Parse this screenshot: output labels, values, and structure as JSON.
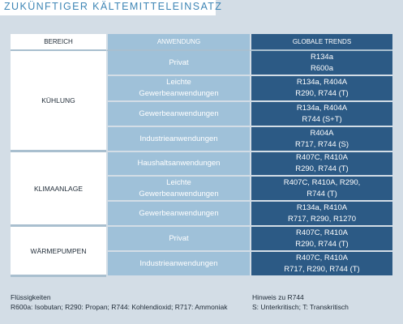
{
  "title": "ZUKÜNFTIGER KÄLTEMITTELEINSATZ",
  "headers": {
    "bereich": "BEREICH",
    "anwendung": "ANWENDUNG",
    "trends": "GLOBALE TRENDS"
  },
  "sections": [
    {
      "bereich": "KÜHLUNG",
      "rows": [
        {
          "anwendung": [
            "Privat"
          ],
          "trends": [
            "R134a",
            "R600a"
          ]
        },
        {
          "anwendung": [
            "Leichte",
            "Gewerbeanwendungen"
          ],
          "trends": [
            "R134a, R404A",
            "R290, R744 (T)"
          ]
        },
        {
          "anwendung": [
            "Gewerbeanwendungen"
          ],
          "trends": [
            "R134a, R404A",
            "R744 (S+T)"
          ]
        },
        {
          "anwendung": [
            "Industrieanwendungen"
          ],
          "trends": [
            "R404A",
            "R717, R744 (S)"
          ]
        }
      ]
    },
    {
      "bereich": "KLIMAANLAGE",
      "rows": [
        {
          "anwendung": [
            "Haushaltsanwendungen"
          ],
          "trends": [
            "R407C, R410A",
            "R290, R744 (T)"
          ]
        },
        {
          "anwendung": [
            "Leichte",
            "Gewerbeanwendungen"
          ],
          "trends": [
            "R407C, R410A, R290,",
            "R744 (T)"
          ]
        },
        {
          "anwendung": [
            "Gewerbeanwendungen"
          ],
          "trends": [
            "R134a, R410A",
            "R717, R290, R1270"
          ]
        }
      ]
    },
    {
      "bereich": "WÄRMEPUMPEN",
      "rows": [
        {
          "anwendung": [
            "Privat"
          ],
          "trends": [
            "R407C, R410A",
            "R290, R744 (T)"
          ]
        },
        {
          "anwendung": [
            "Industrieanwendungen"
          ],
          "trends": [
            "R407C, R410A",
            "R717, R290, R744 (T)"
          ]
        }
      ]
    }
  ],
  "footer": {
    "left_title": "Flüssigkeiten",
    "left_text": "R600a: Isobutan; R290: Propan; R744: Kohlendioxid; R717: Ammoniak",
    "right_title": "Hinweis zu R744",
    "right_text": "S: Unterkritisch; T: Transkritisch"
  },
  "colors": {
    "background": "#d3dde6",
    "anwendung_column": "#9fc1d9",
    "trends_column": "#2c5a85",
    "title": "#3e86b5"
  }
}
